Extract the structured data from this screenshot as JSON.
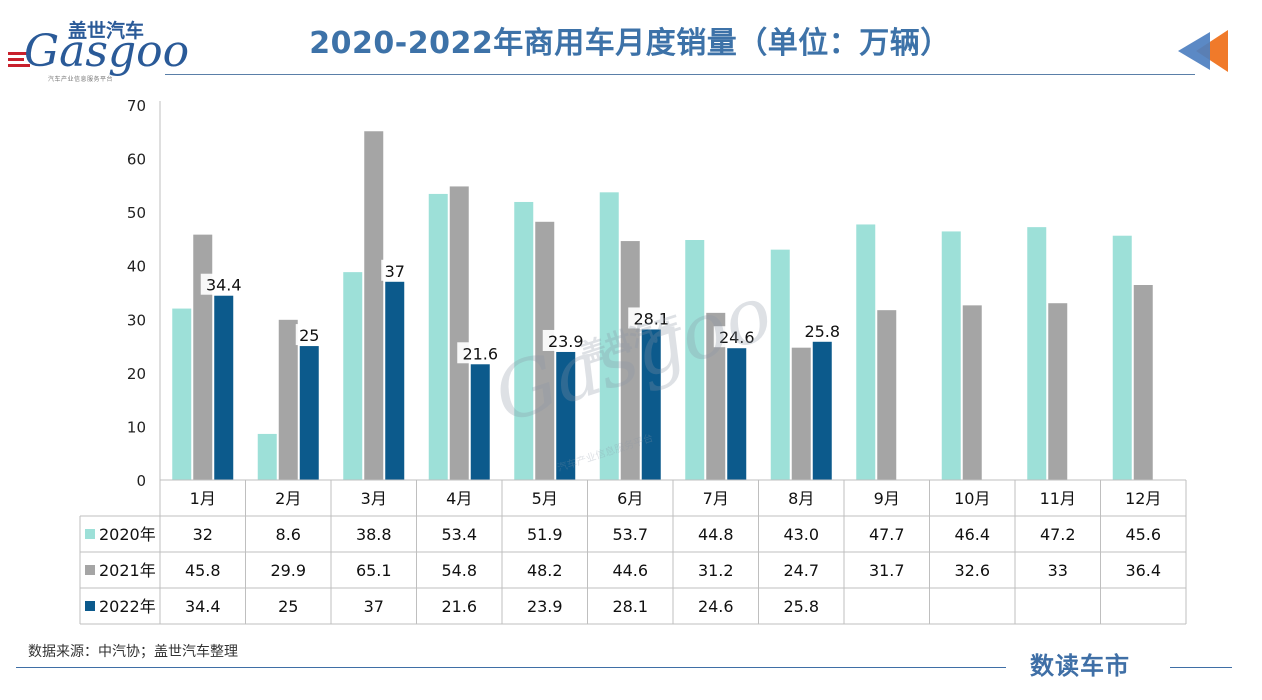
{
  "header": {
    "title": "2020-2022年商用车月度销量（单位：万辆）",
    "logo_cn": "盖世汽车",
    "logo_en": "Gasgoo",
    "logo_sub": "汽车产业信息服务平台"
  },
  "footer": {
    "source": "数据来源：中汽协；盖世汽车整理",
    "brand": "数读车市"
  },
  "colors": {
    "title": "#3d72a8",
    "accent_orange": "#f07a2a",
    "accent_blue": "#4d7fc0"
  },
  "chart_data": {
    "type": "bar",
    "title": "2020-2022年商用车月度销量（单位：万辆）",
    "ylim": [
      0,
      70
    ],
    "yticks": [
      0,
      10,
      20,
      30,
      40,
      50,
      60,
      70
    ],
    "categories": [
      "1月",
      "2月",
      "3月",
      "4月",
      "5月",
      "6月",
      "7月",
      "8月",
      "9月",
      "10月",
      "11月",
      "12月"
    ],
    "series": [
      {
        "name": "2020年",
        "color": "#9de0d8",
        "values": [
          32,
          8.6,
          38.8,
          53.4,
          51.9,
          53.7,
          44.8,
          43.0,
          47.7,
          46.4,
          47.2,
          45.6
        ],
        "labels": [
          "32",
          "8.6",
          "38.8",
          "53.4",
          "51.9",
          "53.7",
          "44.8",
          "43.0",
          "47.7",
          "46.4",
          "47.2",
          "45.6"
        ]
      },
      {
        "name": "2021年",
        "color": "#a5a5a5",
        "values": [
          45.8,
          29.9,
          65.1,
          54.8,
          48.2,
          44.6,
          31.2,
          24.7,
          31.7,
          32.6,
          33,
          36.4
        ],
        "labels": [
          "45.8",
          "29.9",
          "65.1",
          "54.8",
          "48.2",
          "44.6",
          "31.2",
          "24.7",
          "31.7",
          "32.6",
          "33",
          "36.4"
        ]
      },
      {
        "name": "2022年",
        "color": "#0c5a8c",
        "values": [
          34.4,
          25,
          37,
          21.6,
          23.9,
          28.1,
          24.6,
          25.8,
          null,
          null,
          null,
          null
        ],
        "labels": [
          "34.4",
          "25",
          "37",
          "21.6",
          "23.9",
          "28.1",
          "24.6",
          "25.8",
          "",
          "",
          "",
          ""
        ]
      }
    ],
    "data_labels_series": "2022年",
    "grid": false,
    "legend": "data-table"
  }
}
